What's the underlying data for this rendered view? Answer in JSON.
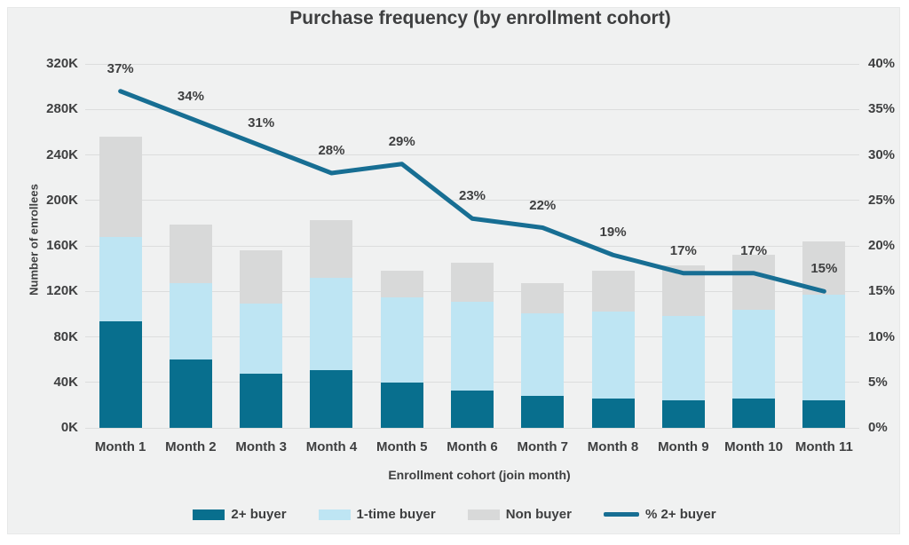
{
  "title": "Purchase frequency (by enrollment cohort)",
  "axes": {
    "y_left": {
      "title": "Number of enrollees",
      "ticks": [
        "0K",
        "40K",
        "80K",
        "120K",
        "160K",
        "200K",
        "240K",
        "280K",
        "320K"
      ]
    },
    "y_right": {
      "ticks": [
        "0%",
        "5%",
        "10%",
        "15%",
        "20%",
        "25%",
        "30%",
        "35%",
        "40%"
      ]
    },
    "x": {
      "title": "Enrollment cohort (join month)"
    }
  },
  "legend": [
    {
      "label": "2+ buyer",
      "type": "rect",
      "color_key": "buyer2"
    },
    {
      "label": "1-time buyer",
      "type": "rect",
      "color_key": "buyer1"
    },
    {
      "label": "Non buyer",
      "type": "rect",
      "color_key": "nonbuyer"
    },
    {
      "label": "% 2+ buyer",
      "type": "line",
      "color_key": "line"
    }
  ],
  "colors": {
    "buyer2": "#086F8E",
    "buyer1": "#BEE5F3",
    "nonbuyer": "#D8D9D9",
    "line": "#176E93",
    "panel": "#F0F1F1",
    "grid": "#DCDDDD",
    "text": "#3E3F40"
  },
  "chart_data": {
    "type": "combo: stacked bar (left axis) + line (right axis)",
    "title": "Purchase frequency (by enrollment cohort)",
    "categories": [
      "Month 1",
      "Month 2",
      "Month 3",
      "Month 4",
      "Month 5",
      "Month 6",
      "Month 7",
      "Month 8",
      "Month 9",
      "Month 10",
      "Month 11"
    ],
    "series": [
      {
        "name": "2+ buyer",
        "values": [
          94,
          60,
          48,
          51,
          40,
          33,
          28,
          26,
          24,
          26,
          24
        ]
      },
      {
        "name": "1-time buyer",
        "values": [
          74,
          67,
          61,
          81,
          75,
          78,
          73,
          76,
          74,
          78,
          93
        ]
      },
      {
        "name": "Non buyer",
        "values": [
          88,
          52,
          47,
          51,
          23,
          34,
          26,
          36,
          45,
          48,
          47
        ]
      }
    ],
    "series_unit": "thousands of enrollees (K)",
    "stack_totals": [
      256,
      179,
      156,
      183,
      138,
      145,
      127,
      138,
      143,
      152,
      164
    ],
    "line_series": {
      "name": "% 2+ buyer",
      "axis": "right",
      "values": [
        37,
        34,
        31,
        28,
        29,
        23,
        22,
        19,
        17,
        17,
        15
      ],
      "labels": [
        "37%",
        "34%",
        "31%",
        "28%",
        "29%",
        "23%",
        "22%",
        "19%",
        "17%",
        "17%",
        "15%"
      ]
    },
    "xlabel": "Enrollment cohort (join month)",
    "ylabel_left": "Number of enrollees",
    "ylim_left": [
      0,
      320
    ],
    "ylim_right": [
      0,
      40
    ],
    "grid": "horizontal gridlines on",
    "legend_position": "bottom",
    "stack_order_bottom_to_top": [
      "2+ buyer",
      "1-time buyer",
      "Non buyer"
    ]
  }
}
